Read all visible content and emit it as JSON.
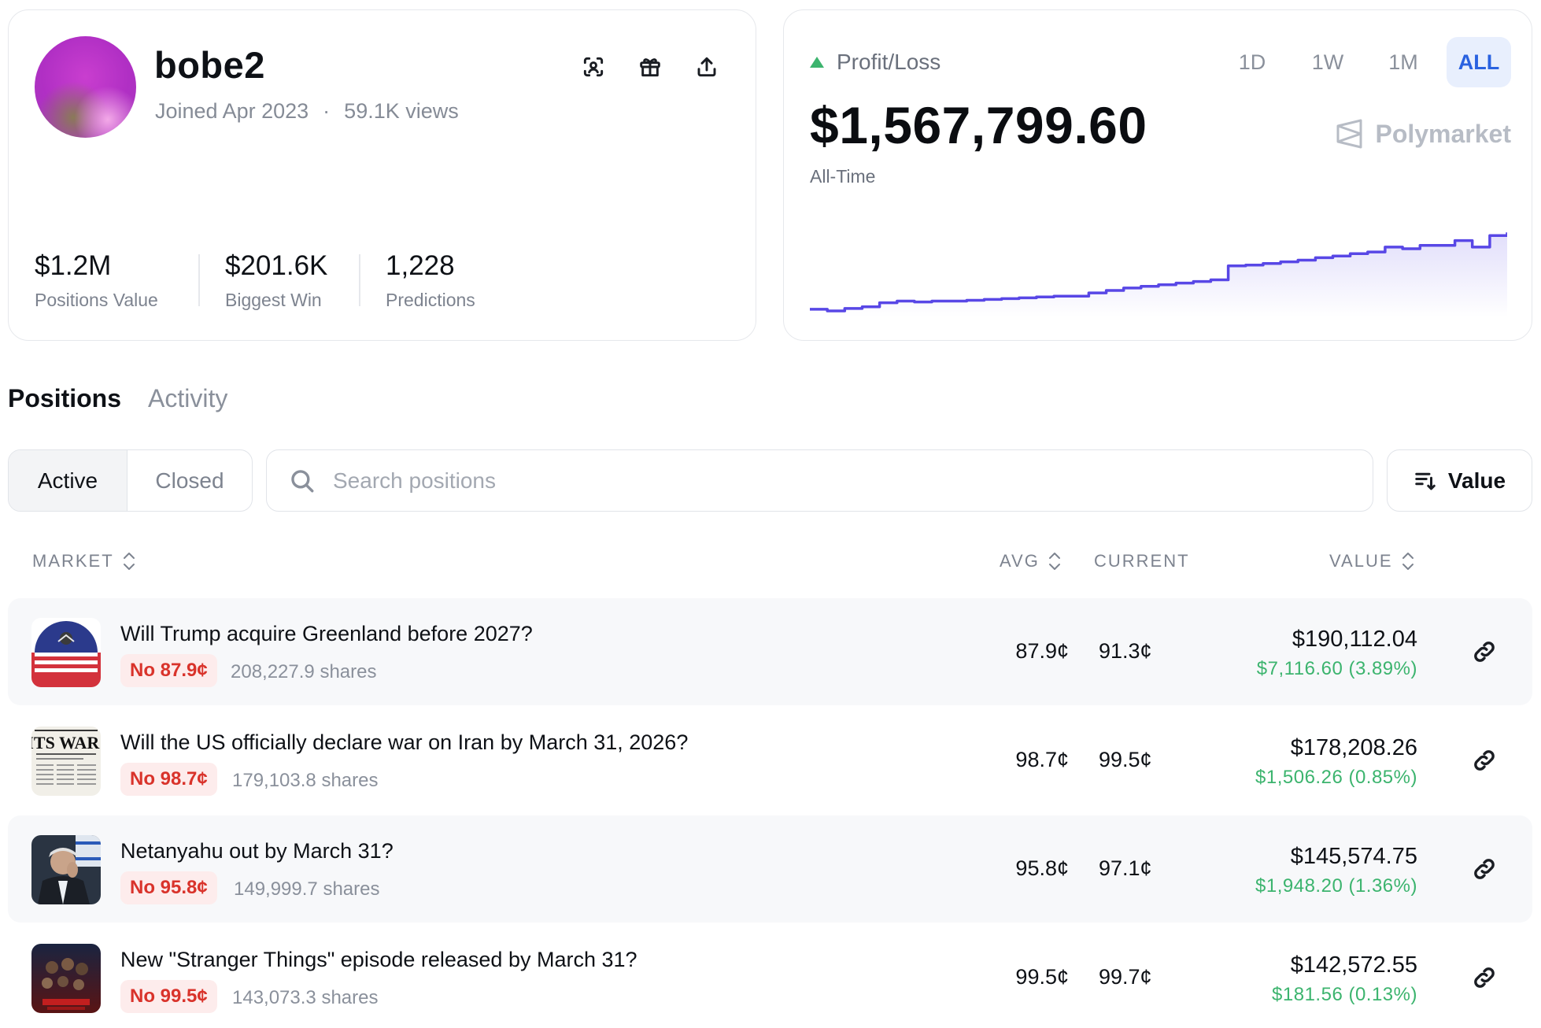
{
  "profile": {
    "username": "bobe2",
    "joined": "Joined Apr 2023",
    "separator": "·",
    "views": "59.1K views",
    "icons": [
      "scan-face-icon",
      "gift-icon",
      "share-icon"
    ],
    "stats": [
      {
        "value": "$1.2M",
        "label": "Positions Value"
      },
      {
        "value": "$201.6K",
        "label": "Biggest Win"
      },
      {
        "value": "1,228",
        "label": "Predictions"
      }
    ]
  },
  "pnl": {
    "label": "Profit/Loss",
    "value": "$1,567,799.60",
    "period": "All-Time",
    "brand": "Polymarket",
    "ranges": [
      "1D",
      "1W",
      "1M",
      "ALL"
    ],
    "active_range": "ALL",
    "colors": {
      "line": "#5847e6",
      "up": "#3cb46e"
    }
  },
  "chart_data": {
    "type": "line",
    "series": [
      {
        "values": [
          0.02,
          0.0,
          0.03,
          0.05,
          0.1,
          0.12,
          0.11,
          0.12,
          0.12,
          0.13,
          0.14,
          0.15,
          0.16,
          0.17,
          0.18,
          0.18,
          0.22,
          0.25,
          0.28,
          0.3,
          0.32,
          0.34,
          0.36,
          0.38,
          0.55,
          0.56,
          0.58,
          0.6,
          0.62,
          0.65,
          0.67,
          0.7,
          0.72,
          0.78,
          0.76,
          0.8,
          0.8,
          0.86,
          0.78,
          0.92,
          0.96
        ]
      }
    ]
  },
  "tabs": {
    "items": [
      "Positions",
      "Activity"
    ],
    "active": "Positions"
  },
  "filters": {
    "status": [
      "Active",
      "Closed"
    ],
    "active_status": "Active",
    "search_placeholder": "Search positions",
    "sort_label": "Value"
  },
  "table": {
    "headers": {
      "market": "MARKET",
      "avg": "AVG",
      "current": "CURRENT",
      "value": "VALUE"
    },
    "rows": [
      {
        "question": "Will Trump acquire Greenland before 2027?",
        "outcome": "No 87.9¢",
        "shares": "208,227.9 shares",
        "avg": "87.9¢",
        "current": "91.3¢",
        "value": "$190,112.04",
        "gain": "$7,116.60 (3.89%)"
      },
      {
        "question": "Will the US officially declare war on Iran by March 31, 2026?",
        "outcome": "No 98.7¢",
        "shares": "179,103.8 shares",
        "avg": "98.7¢",
        "current": "99.5¢",
        "value": "$178,208.26",
        "gain": "$1,506.26 (0.85%)",
        "thumb_text": "ITS WAR!"
      },
      {
        "question": "Netanyahu out by March 31?",
        "outcome": "No 95.8¢",
        "shares": "149,999.7 shares",
        "avg": "95.8¢",
        "current": "97.1¢",
        "value": "$145,574.75",
        "gain": "$1,948.20 (1.36%)"
      },
      {
        "question": "New \"Stranger Things\" episode released by March 31?",
        "outcome": "No 99.5¢",
        "shares": "143,073.3 shares",
        "avg": "99.5¢",
        "current": "99.7¢",
        "value": "$142,572.55",
        "gain": "$181.56 (0.13%)"
      }
    ]
  }
}
